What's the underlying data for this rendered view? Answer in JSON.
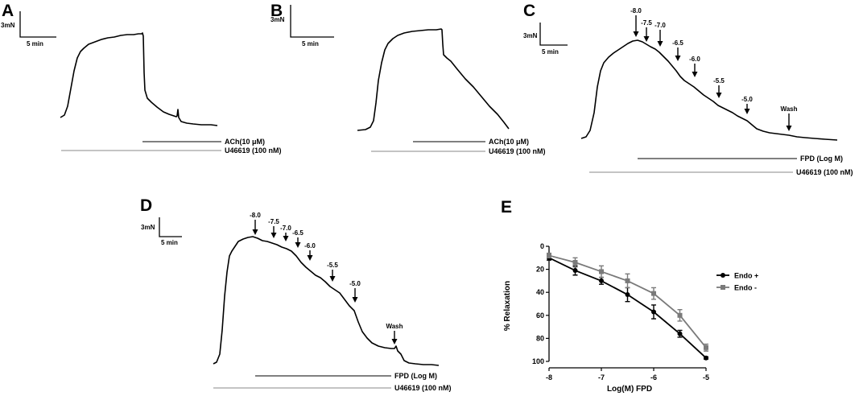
{
  "panels": {
    "A": {
      "letter": "A",
      "scale_force": "3mN",
      "scale_time": "5 min",
      "agent_label": "ACh(10 μM)",
      "pre_label": "U46619 (100 nM)"
    },
    "B": {
      "letter": "B",
      "scale_force": "3mN",
      "scale_time": "5 min",
      "agent_label": "ACh(10 μM)",
      "pre_label": "U46619 (100 nM)"
    },
    "C": {
      "letter": "C",
      "scale_force": "3mN",
      "scale_time": "5 min",
      "agent_label": "FPD (Log M)",
      "pre_label": "U46619 (100 nM)",
      "doses": [
        "-8.0",
        "-7.5",
        "-7.0",
        "-6.5",
        "-6.0",
        "-5.5",
        "-5.0",
        "Wash"
      ]
    },
    "D": {
      "letter": "D",
      "scale_force": "3mN",
      "scale_time": "5 min",
      "agent_label": "FPD (Log M)",
      "pre_label": "U46619 (100 nM)",
      "doses": [
        "-8.0",
        "-7.5",
        "-7.0",
        "-6.5",
        "-6.0",
        "-5.5",
        "-5.0",
        "Wash"
      ]
    },
    "E": {
      "letter": "E"
    }
  },
  "chart_data": {
    "type": "line",
    "xlabel": "Log(M) FPD",
    "ylabel": "% Relaxation",
    "x": [
      -8,
      -7.5,
      -7,
      -6.5,
      -6,
      -5.5,
      -5
    ],
    "xlim": [
      -8,
      -5
    ],
    "xticks": [
      "-8",
      "-7",
      "-6",
      "-5"
    ],
    "ylim": [
      0,
      100
    ],
    "y_inverted": true,
    "yticks": [
      "0",
      "20",
      "40",
      "60",
      "80",
      "100"
    ],
    "series": [
      {
        "name": "Endo +",
        "color": "#000000",
        "marker": "circle",
        "values": [
          10,
          21,
          30,
          42,
          57,
          76,
          97
        ],
        "err": [
          2,
          4,
          3,
          6,
          6,
          3,
          1
        ]
      },
      {
        "name": "Endo -",
        "color": "#7a7a7a",
        "marker": "square",
        "values": [
          8,
          14,
          22,
          30,
          41,
          60,
          88
        ],
        "err": [
          2,
          4,
          5,
          6,
          5,
          5,
          3
        ]
      }
    ],
    "legend": "right"
  }
}
